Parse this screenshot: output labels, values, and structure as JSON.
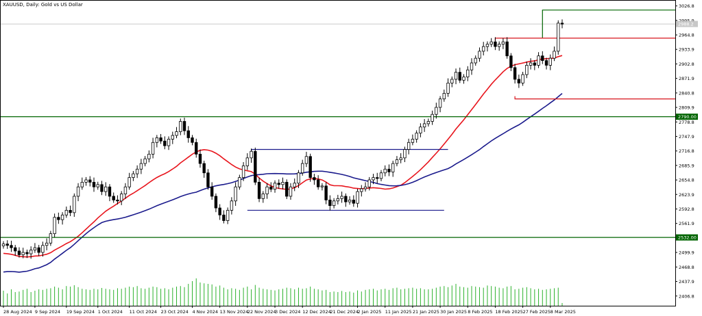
{
  "window": {
    "title": "XAUUSD, Daily:  Gold vs US Dollar"
  },
  "colors": {
    "background": "#ffffff",
    "grid": "#cccccc",
    "bull": "#000000",
    "bear": "#000000",
    "ma_fast": "#e8141c",
    "ma_slow": "#1a1a8c",
    "support_resistance": "#006400",
    "range_box": "#1a1a8c",
    "recent_levels": "#d7141b",
    "volume": "#2cb22c"
  },
  "chart_data": {
    "type": "candlestick",
    "symbol": "XAUUSD",
    "timeframe": "Daily",
    "ylim": [
      2386,
      3038
    ],
    "y_ticks": [
      3026.8,
      2995.9,
      2964.8,
      2933.9,
      2902.8,
      2871.9,
      2840.8,
      2809.9,
      2778.8,
      2747.9,
      2716.8,
      2685.9,
      2654.8,
      2623.9,
      2592.8,
      2561.9,
      2530.8,
      2499.9,
      2468.8,
      2437.9,
      2406.8
    ],
    "x_ticks": [
      {
        "label": "28 Aug 2024",
        "i": 0
      },
      {
        "label": "9 Sep 2024",
        "i": 8
      },
      {
        "label": "19 Sep 2024",
        "i": 16
      },
      {
        "label": "1 Oct 2024",
        "i": 24
      },
      {
        "label": "11 Oct 2024",
        "i": 32
      },
      {
        "label": "23 Oct 2024",
        "i": 40
      },
      {
        "label": "4 Nov 2024",
        "i": 48
      },
      {
        "label": "13 Nov 2024",
        "i": 55
      },
      {
        "label": "22 Nov 2024",
        "i": 62
      },
      {
        "label": "3 Dec 2024",
        "i": 69
      },
      {
        "label": "12 Dec 2024",
        "i": 76
      },
      {
        "label": "21 Dec 2024",
        "i": 83
      },
      {
        "label": "2 Jan 2025",
        "i": 90
      },
      {
        "label": "11 Jan 2025",
        "i": 97
      },
      {
        "label": "21 Jan 2025",
        "i": 104
      },
      {
        "label": "30 Jan 2025",
        "i": 111
      },
      {
        "label": "8 Feb 2025",
        "i": 118
      },
      {
        "label": "18 Feb 2025",
        "i": 125
      },
      {
        "label": "27 Feb 2025",
        "i": 132
      },
      {
        "label": "8 Mar 2025",
        "i": 139
      }
    ],
    "close": [
      2518,
      2515,
      2510,
      2503,
      2495,
      2500,
      2497,
      2505,
      2510,
      2500,
      2515,
      2520,
      2540,
      2575,
      2570,
      2580,
      2590,
      2585,
      2620,
      2640,
      2650,
      2655,
      2650,
      2640,
      2645,
      2630,
      2640,
      2620,
      2612,
      2610,
      2625,
      2640,
      2660,
      2668,
      2678,
      2690,
      2700,
      2710,
      2735,
      2745,
      2738,
      2728,
      2742,
      2750,
      2758,
      2780,
      2760,
      2745,
      2735,
      2710,
      2690,
      2670,
      2640,
      2620,
      2595,
      2580,
      2568,
      2590,
      2610,
      2640,
      2660,
      2685,
      2702,
      2716,
      2650,
      2615,
      2625,
      2640,
      2635,
      2648,
      2645,
      2650,
      2620,
      2640,
      2648,
      2670,
      2690,
      2705,
      2660,
      2655,
      2640,
      2642,
      2612,
      2600,
      2610,
      2615,
      2620,
      2608,
      2612,
      2605,
      2630,
      2636,
      2640,
      2655,
      2660,
      2658,
      2670,
      2678,
      2672,
      2690,
      2698,
      2702,
      2720,
      2735,
      2742,
      2755,
      2768,
      2775,
      2780,
      2795,
      2810,
      2828,
      2840,
      2862,
      2870,
      2885,
      2868,
      2875,
      2890,
      2905,
      2915,
      2930,
      2940,
      2945,
      2950,
      2940,
      2945,
      2950,
      2920,
      2895,
      2870,
      2862,
      2880,
      2900,
      2905,
      2900,
      2920,
      2910,
      2900,
      2915,
      2930,
      2990,
      2988
    ],
    "volume": [
      0.55,
      0.45,
      0.6,
      0.5,
      0.52,
      0.58,
      0.62,
      0.5,
      0.55,
      0.6,
      0.58,
      0.62,
      0.64,
      0.7,
      0.66,
      0.6,
      0.72,
      0.7,
      0.75,
      0.68,
      0.62,
      0.6,
      0.58,
      0.62,
      0.6,
      0.65,
      0.62,
      0.6,
      0.58,
      0.64,
      0.62,
      0.66,
      0.7,
      0.68,
      0.72,
      0.64,
      0.62,
      0.66,
      0.7,
      0.68,
      0.62,
      0.64,
      0.6,
      0.66,
      0.7,
      0.72,
      0.68,
      0.8,
      0.9,
      1.0,
      0.85,
      0.82,
      0.8,
      0.78,
      0.7,
      0.74,
      0.66,
      0.6,
      0.64,
      0.62,
      0.58,
      0.66,
      0.7,
      0.6,
      0.76,
      0.66,
      0.62,
      0.6,
      0.58,
      0.56,
      0.6,
      0.62,
      0.66,
      0.64,
      0.6,
      0.66,
      0.62,
      0.64,
      0.7,
      0.62,
      0.6,
      0.56,
      0.58,
      0.5,
      0.52,
      0.5,
      0.54,
      0.5,
      0.52,
      0.48,
      0.56,
      0.52,
      0.58,
      0.6,
      0.62,
      0.56,
      0.6,
      0.62,
      0.58,
      0.64,
      0.66,
      0.6,
      0.62,
      0.64,
      0.66,
      0.62,
      0.64,
      0.6,
      0.6,
      0.62,
      0.66,
      0.7,
      0.72,
      0.68,
      0.74,
      0.8,
      0.7,
      0.68,
      0.66,
      0.72,
      0.7,
      0.68,
      0.66,
      0.74,
      0.72,
      0.7,
      0.66,
      0.64,
      0.7,
      0.72,
      0.6,
      0.62,
      0.66,
      0.68,
      0.64,
      0.6,
      0.62,
      0.58,
      0.6,
      0.62,
      0.64,
      0.66,
      0.1
    ],
    "horizontal_levels": [
      {
        "name": "resistance-2790",
        "price": 2790.0,
        "label": "2790.00",
        "color": "#006400"
      },
      {
        "name": "support-2532",
        "price": 2532.0,
        "label": "2532.00",
        "color": "#006400"
      },
      {
        "name": "current-price",
        "price": 2988.2,
        "label": "2988.2",
        "color": "#aaaaaa"
      }
    ],
    "range_box": {
      "upper": 2720,
      "lower": 2590
    },
    "recent_levels": {
      "top": 3018,
      "upper": 2958,
      "lower": 2828
    }
  }
}
